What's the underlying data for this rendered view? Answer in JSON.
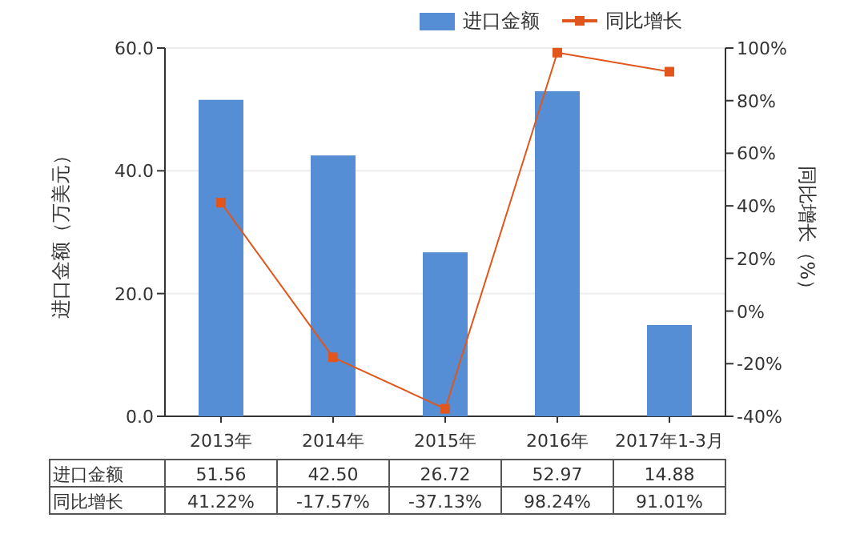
{
  "chart_data": {
    "type": "bar",
    "categories": [
      "2013年",
      "2014年",
      "2015年",
      "2016年",
      "2017年1-3月"
    ],
    "ylabel": "进口金额（万美元）",
    "y2label": "同比增长（%）",
    "ylim": [
      0,
      60
    ],
    "yticks": [
      {
        "value": 0,
        "label": "0.0"
      },
      {
        "value": 20,
        "label": "20.0"
      },
      {
        "value": 40,
        "label": "40.0"
      },
      {
        "value": 60,
        "label": "60.0"
      }
    ],
    "y2lim": [
      -40,
      100
    ],
    "y2ticks": [
      {
        "value": -40,
        "label": "-40%"
      },
      {
        "value": -20,
        "label": "-20%"
      },
      {
        "value": 0,
        "label": "0%"
      },
      {
        "value": 20,
        "label": "20%"
      },
      {
        "value": 40,
        "label": "40%"
      },
      {
        "value": 60,
        "label": "60%"
      },
      {
        "value": 80,
        "label": "80%"
      },
      {
        "value": 100,
        "label": "100%"
      }
    ],
    "grid": "y",
    "legend": "top right",
    "series": [
      {
        "name": "进口金额",
        "color": "#558ed5",
        "values": [
          51.56,
          42.5,
          26.72,
          52.97,
          14.88
        ],
        "value_labels": [
          "51.56",
          "42.50",
          "26.72",
          "52.97",
          "14.88"
        ]
      },
      {
        "name": "同比增长",
        "type": "line",
        "axis": "y2",
        "color": "#e0561c",
        "marker": "square",
        "values": [
          41.22,
          -17.57,
          -37.13,
          98.24,
          91.01
        ],
        "value_labels": [
          "41.22%",
          "-17.57%",
          "-37.13%",
          "98.24%",
          "91.01%"
        ]
      }
    ]
  }
}
